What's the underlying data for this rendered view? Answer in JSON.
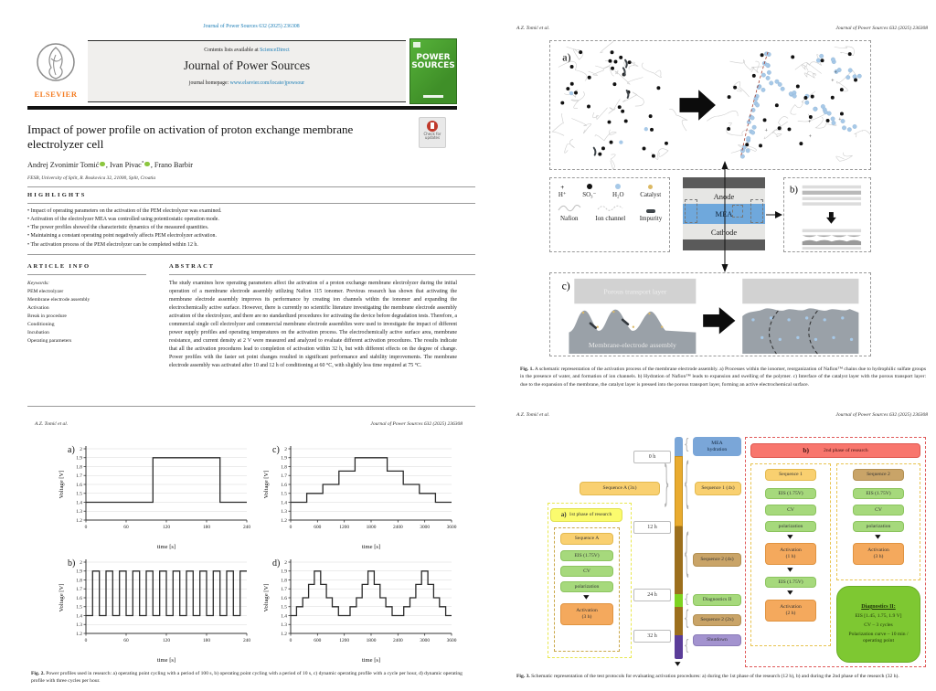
{
  "journal_ref": "Journal of Power Sources 632 (2025) 236308",
  "running_head": "A.Z. Tomić et al.",
  "page1": {
    "contents_line": "Contents lists available at",
    "sciencedirect": "ScienceDirect",
    "journal_title": "Journal of Power Sources",
    "homepage_label": "journal homepage:",
    "homepage_url": "www.elsevier.com/locate/jpowsour",
    "elsevier_label": "ELSEVIER",
    "cover_word1": "POWER",
    "cover_word2": "SOURCES",
    "check_updates": "Check for updates",
    "title": "Impact of power profile on activation of proton exchange membrane electrolyzer cell",
    "authors": [
      {
        "name": "Andrej Zvonimir Tomić"
      },
      {
        "name": "Ivan Pivac",
        "mark": "*"
      },
      {
        "name": "Frano Barbir"
      }
    ],
    "comma": ",",
    "affiliation": "FESB, University of Split, R. Boskovica 32, 21000, Split, Croatia",
    "highlights_heading": "HIGHLIGHTS",
    "highlights": [
      "Impact of operating parameters on the activation of the PEM electrolyzer was examined.",
      "Activation of the electrolyzer MEA was controlled using potentiostatic operation mode.",
      "The power profiles showed the characteristic dynamics of the measured quantities.",
      "Maintaining a constant operating point negatively affects PEM electrolyzer activation.",
      "The activation process of the PEM electrolyzer can be completed within 12 h."
    ],
    "article_info_heading": "ARTICLE INFO",
    "abstract_heading": "ABSTRACT",
    "keywords_label": "Keywords:",
    "keywords": [
      "PEM electrolyzer",
      "Membrane electrode assembly",
      "Activation",
      "Break in procedure",
      "Conditioning",
      "Incubation",
      "Operating parameters"
    ],
    "abstract": "The study examines how operating parameters affect the activation of a proton exchange membrane electrolyzer during the initial operation of a membrane electrode assembly utilizing Nafion 115 ionomer. Previous research has shown that activating the membrane electrode assembly improves its performance by creating ion channels within the ionomer and expanding the electrochemically active surface. However, there is currently no scientific literature investigating the membrane electrode assembly activation of the electrolyzer, and there are no standardized procedures for activating the device before degradation tests. Therefore, a commercial single cell electrolyzer and commercial membrane electrode assemblies were used to investigate the impact of different power supply profiles and operating temperatures on the activation process. The electrochemically active surface area, membrane resistance, and current density at 2 V were measured and analyzed to evaluate different activation procedures. The results indicate that all the activation procedures lead to completion of activation within 32 h, but with different effects on the degree of change. Power profiles with the faster set point changes resulted in significant performance and stability improvements. The membrane electrode assembly was activated after 10 and 12 h of conditioning at 60 °C, with slightly less time required at 75 °C."
  },
  "fig1": {
    "panel_a": "a)",
    "panel_b": "b)",
    "panel_c": "c)",
    "legend": {
      "hplus": "H⁺",
      "so3": "SO₃⁻",
      "h2o": "H₂O",
      "catalyst": "Catalyst",
      "nafion": "Nafion",
      "ion_channel": "Ion channel",
      "impurity": "Impurity"
    },
    "stack": {
      "anode": "Anode",
      "mea": "MEA",
      "cathode": "Cathode"
    },
    "ptl": "Porous transport layer",
    "mea_assembly": "Membrane-electrode assembly",
    "cap_label": "Fig. 1.",
    "caption": "A schematic representation of the activation process of the membrane electrode assembly. a) Processes within the ionomer, reorganization of Nafion™ chains due to hydrophilic sulfate groups in the presence of water, and formation of ion channels. b) Hydration of Nafion™ leads to expansion and swelling of the polymer. c) Interface of the catalyst layer with the porous transport layer: due to the expansion of the membrane, the catalyst layer is pressed into the porous transport layer, forming an active electrochemical surface."
  },
  "fig2": {
    "cap_label": "Fig. 2.",
    "caption": "Power profiles used in research: a) operating point cycling with a period of 100 s, b) operating point cycling with a period of 10 s, c) dynamic operating profile with a cycle per hour, d) dynamic operating profile with three cycles per hour."
  },
  "chart_data": [
    {
      "type": "line",
      "label": "a)",
      "xlabel": "time [s]",
      "ylabel": "Voltage [V]",
      "xlim": [
        0,
        240
      ],
      "ylim": [
        1.2,
        2.0
      ],
      "xticks": [
        0,
        60,
        120,
        180,
        240
      ],
      "yticks": [
        1.2,
        1.3,
        1.4,
        1.5,
        1.6,
        1.7,
        1.8,
        1.9,
        2
      ],
      "grid": "horizontal",
      "steps": [
        [
          0,
          1.4
        ],
        [
          100,
          1.9
        ],
        [
          200,
          1.4
        ]
      ],
      "note": "operating point cycling, period 100 s"
    },
    {
      "type": "line",
      "label": "c)",
      "xlabel": "time [s]",
      "ylabel": "Voltage [V]",
      "xlim": [
        0,
        3600
      ],
      "ylim": [
        1.2,
        2.0
      ],
      "xticks": [
        0,
        600,
        1200,
        1800,
        2400,
        3000,
        3600
      ],
      "yticks": [
        1.2,
        1.3,
        1.4,
        1.5,
        1.6,
        1.7,
        1.8,
        1.9,
        2
      ],
      "grid": "horizontal",
      "steps": [
        [
          0,
          1.4
        ],
        [
          360,
          1.5
        ],
        [
          720,
          1.6
        ],
        [
          1080,
          1.75
        ],
        [
          1440,
          1.9
        ],
        [
          2160,
          1.75
        ],
        [
          2520,
          1.6
        ],
        [
          2880,
          1.5
        ],
        [
          3240,
          1.4
        ]
      ],
      "note": "dynamic operating profile, one cycle per hour"
    },
    {
      "type": "line",
      "label": "b)",
      "xlabel": "time [s]",
      "ylabel": "Voltage [V]",
      "xlim": [
        0,
        240
      ],
      "ylim": [
        1.2,
        2.0
      ],
      "xticks": [
        0,
        60,
        120,
        180,
        240
      ],
      "yticks": [
        1.2,
        1.3,
        1.4,
        1.5,
        1.6,
        1.7,
        1.8,
        1.9,
        2
      ],
      "grid": "horizontal",
      "steps": [
        [
          0,
          1.4
        ],
        [
          10,
          1.9
        ],
        [
          20,
          1.4
        ],
        [
          30,
          1.9
        ],
        [
          40,
          1.4
        ],
        [
          50,
          1.9
        ],
        [
          60,
          1.4
        ],
        [
          70,
          1.9
        ],
        [
          80,
          1.4
        ],
        [
          90,
          1.9
        ],
        [
          100,
          1.4
        ],
        [
          110,
          1.9
        ],
        [
          120,
          1.4
        ],
        [
          130,
          1.9
        ],
        [
          140,
          1.4
        ],
        [
          150,
          1.9
        ],
        [
          160,
          1.4
        ],
        [
          170,
          1.9
        ],
        [
          180,
          1.4
        ],
        [
          190,
          1.9
        ],
        [
          200,
          1.4
        ],
        [
          210,
          1.9
        ],
        [
          220,
          1.4
        ],
        [
          230,
          1.9
        ]
      ],
      "note": "operating point cycling, period 10 s"
    },
    {
      "type": "line",
      "label": "d)",
      "xlabel": "time [s]",
      "ylabel": "Voltage [V]",
      "xlim": [
        0,
        3600
      ],
      "ylim": [
        1.2,
        2.0
      ],
      "xticks": [
        0,
        600,
        1200,
        1800,
        2400,
        3000,
        3600
      ],
      "yticks": [
        1.2,
        1.3,
        1.4,
        1.5,
        1.6,
        1.7,
        1.8,
        1.9,
        2
      ],
      "grid": "horizontal",
      "steps": [
        [
          0,
          1.4
        ],
        [
          130,
          1.5
        ],
        [
          270,
          1.6
        ],
        [
          400,
          1.75
        ],
        [
          530,
          1.9
        ],
        [
          670,
          1.75
        ],
        [
          800,
          1.6
        ],
        [
          930,
          1.5
        ],
        [
          1070,
          1.4
        ],
        [
          1330,
          1.5
        ],
        [
          1470,
          1.6
        ],
        [
          1600,
          1.75
        ],
        [
          1730,
          1.9
        ],
        [
          1870,
          1.75
        ],
        [
          2000,
          1.6
        ],
        [
          2130,
          1.5
        ],
        [
          2270,
          1.4
        ],
        [
          2530,
          1.5
        ],
        [
          2670,
          1.6
        ],
        [
          2800,
          1.75
        ],
        [
          2930,
          1.9
        ],
        [
          3070,
          1.75
        ],
        [
          3200,
          1.6
        ],
        [
          3330,
          1.5
        ],
        [
          3470,
          1.4
        ]
      ],
      "note": "dynamic operating profile, three cycles per hour"
    }
  ],
  "fig3": {
    "times": [
      "0 h",
      "12 h",
      "24 h",
      "32 h"
    ],
    "labels": {
      "mea1": "MEA",
      "mea2": "hydration",
      "seq1_4x": "Sequence 1 (4x)",
      "seq2_4x": "Sequence 2 (4x)",
      "diag2": "Diagnostics II",
      "seq2_2x": "Sequence 2 (2x)",
      "shutdown": "Shutdown",
      "seqA_3x": "Sequence A (3x)"
    },
    "a_tag": "a)",
    "a_banner": "1st phase of research",
    "b_tag": "b)",
    "b_banner": "2nd phase of research",
    "col_a": {
      "title": "Sequence A",
      "steps": [
        "EIS (1.75V)",
        "CV",
        "polarization"
      ],
      "act_label": "Activation",
      "act_time": "(3 h)"
    },
    "col_1": {
      "title": "Sequence 1",
      "steps": [
        "EIS (1.75V)",
        "CV",
        "polarization"
      ],
      "act1_label": "Activation",
      "act1_time": "(1 h)",
      "eis2": "EIS (1.75V)",
      "act2_label": "Activation",
      "act2_time": "(2 h)"
    },
    "col_2": {
      "title": "Sequence 2",
      "steps": [
        "EIS (1.75V)",
        "CV",
        "polarization"
      ],
      "act_label": "Activation",
      "act_time": "(3 h)"
    },
    "diag": {
      "title": "Diagnostics II:",
      "line1": "EIS [1.45, 1.75, 1.9 V]",
      "line2": "CV – 3 cycles",
      "line3": "Polarization curve – 10 min / operating point"
    },
    "cap_label": "Fig. 3.",
    "caption": "Schematic representation of the test protocols for evaluating activation procedures: a) during the 1st phase of the research (12 h), b) and during the 2nd phase of the research (32 h)."
  },
  "colors": {
    "link_blue": "#1b7db6",
    "elsevier_orange": "#f47b20",
    "cover_green": "#4a9b2f",
    "mea_blue": "#6fa8dc",
    "timeline_yellow": "#e9ab2f",
    "timeline_brown": "#9c6f1d",
    "timeline_green": "#7ed321",
    "timeline_purple": "#5b3d99",
    "timeline_blue": "#7aa6d8",
    "banner_red": "#f8766d",
    "banner_yellow": "#fbfb6e",
    "box_green": "#a6d97c",
    "box_orange": "#f4a95d",
    "box_yellow": "#f9d070",
    "box_tan": "#c9a468",
    "box_purple": "#a393cf",
    "diag_green": "#7ec832"
  }
}
